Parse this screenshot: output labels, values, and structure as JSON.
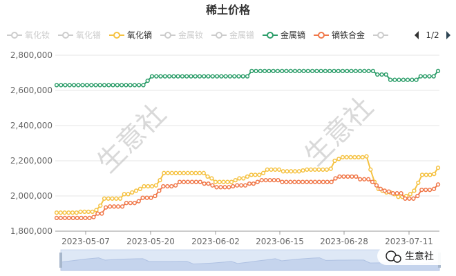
{
  "chart_data": {
    "type": "line",
    "title": "稀土价格",
    "legend": {
      "placement": "top",
      "page": "1/2",
      "items": [
        {
          "name": "氧化钕",
          "active": false
        },
        {
          "name": "氧化镨",
          "active": false
        },
        {
          "name": "氧化镝",
          "active": true,
          "color": "#f5c242"
        },
        {
          "name": "金属钕",
          "active": false
        },
        {
          "name": "金属镨",
          "active": false
        },
        {
          "name": "金属镝",
          "active": true,
          "color": "#2e9e6b"
        },
        {
          "name": "镝铁合金",
          "active": true,
          "color": "#f0784a"
        },
        {
          "name": "",
          "active": false
        }
      ]
    },
    "x_ticks": [
      "2023-05-07",
      "2023-05-20",
      "2023-06-02",
      "2023-06-15",
      "2023-06-28",
      "2023-07-11"
    ],
    "y_ticks": [
      "1,800,000",
      "2,000,000",
      "2,200,000",
      "2,400,000",
      "2,600,000",
      "2,800,000"
    ],
    "ylim": [
      1800000,
      2800000
    ],
    "grid": true,
    "series": [
      {
        "name": "金属镝",
        "color": "#2e9e6b",
        "values": [
          2630000,
          2630000,
          2630000,
          2630000,
          2630000,
          2630000,
          2630000,
          2630000,
          2630000,
          2630000,
          2630000,
          2630000,
          2630000,
          2630000,
          2630000,
          2630000,
          2630000,
          2630000,
          2630000,
          2630000,
          2630000,
          2655000,
          2680000,
          2680000,
          2680000,
          2680000,
          2680000,
          2680000,
          2680000,
          2680000,
          2680000,
          2680000,
          2680000,
          2680000,
          2680000,
          2680000,
          2680000,
          2680000,
          2680000,
          2680000,
          2680000,
          2680000,
          2680000,
          2680000,
          2680000,
          2710000,
          2710000,
          2710000,
          2710000,
          2710000,
          2710000,
          2710000,
          2710000,
          2710000,
          2710000,
          2710000,
          2710000,
          2710000,
          2710000,
          2710000,
          2710000,
          2710000,
          2710000,
          2710000,
          2710000,
          2710000,
          2710000,
          2710000,
          2710000,
          2710000,
          2710000,
          2710000,
          2710000,
          2710000,
          2690000,
          2690000,
          2690000,
          2660000,
          2660000,
          2660000,
          2660000,
          2660000,
          2660000,
          2660000,
          2680000,
          2680000,
          2680000,
          2680000,
          2710000
        ]
      },
      {
        "name": "氧化镝",
        "color": "#f5c242",
        "values": [
          1905000,
          1905000,
          1905000,
          1905000,
          1905000,
          1905000,
          1910000,
          1910000,
          1910000,
          1910000,
          1920000,
          1945000,
          1985000,
          1985000,
          1985000,
          1985000,
          1985000,
          2010000,
          2010000,
          2020000,
          2030000,
          2040000,
          2055000,
          2055000,
          2055000,
          2060000,
          2090000,
          2130000,
          2130000,
          2130000,
          2130000,
          2130000,
          2130000,
          2130000,
          2130000,
          2130000,
          2130000,
          2130000,
          2110000,
          2100000,
          2080000,
          2080000,
          2080000,
          2080000,
          2080000,
          2090000,
          2100000,
          2100000,
          2110000,
          2120000,
          2120000,
          2120000,
          2130000,
          2150000,
          2150000,
          2150000,
          2150000,
          2140000,
          2140000,
          2140000,
          2140000,
          2140000,
          2145000,
          2150000,
          2150000,
          2150000,
          2150000,
          2150000,
          2150000,
          2155000,
          2200000,
          2210000,
          2220000,
          2220000,
          2220000,
          2220000,
          2220000,
          2220000,
          2225000,
          2150000,
          2080000,
          2040000,
          2030000,
          2020000,
          2020000,
          2010000,
          1995000,
          1995000,
          2000000,
          2010000,
          2030000,
          2075000,
          2120000,
          2120000,
          2120000,
          2125000,
          2160000
        ]
      },
      {
        "name": "镝铁合金",
        "color": "#f0784a",
        "values": [
          1875000,
          1875000,
          1875000,
          1875000,
          1875000,
          1875000,
          1875000,
          1875000,
          1875000,
          1880000,
          1900000,
          1900000,
          1935000,
          1940000,
          1940000,
          1940000,
          1940000,
          1960000,
          1960000,
          1960000,
          1970000,
          1990000,
          1990000,
          1990000,
          2000000,
          2030000,
          2055000,
          2055000,
          2055000,
          2060000,
          2080000,
          2080000,
          2080000,
          2080000,
          2080000,
          2080000,
          2070000,
          2070000,
          2060000,
          2050000,
          2050000,
          2050000,
          2050000,
          2055000,
          2060000,
          2060000,
          2060000,
          2070000,
          2070000,
          2080000,
          2090000,
          2090000,
          2090000,
          2090000,
          2090000,
          2080000,
          2080000,
          2080000,
          2080000,
          2080000,
          2080000,
          2080000,
          2080000,
          2080000,
          2080000,
          2080000,
          2080000,
          2080000,
          2100000,
          2110000,
          2110000,
          2110000,
          2110000,
          2110000,
          2095000,
          2095000,
          2095000,
          2080000,
          2060000,
          2040000,
          2030000,
          2025000,
          2015000,
          2015000,
          2015000,
          1985000,
          1985000,
          1985000,
          2000000,
          2035000,
          2035000,
          2035000,
          2040000,
          2065000
        ]
      }
    ]
  },
  "watermarks": [
    {
      "text": "生意社"
    },
    {
      "text": "生意社"
    }
  ],
  "badge": {
    "text": "生意社"
  }
}
